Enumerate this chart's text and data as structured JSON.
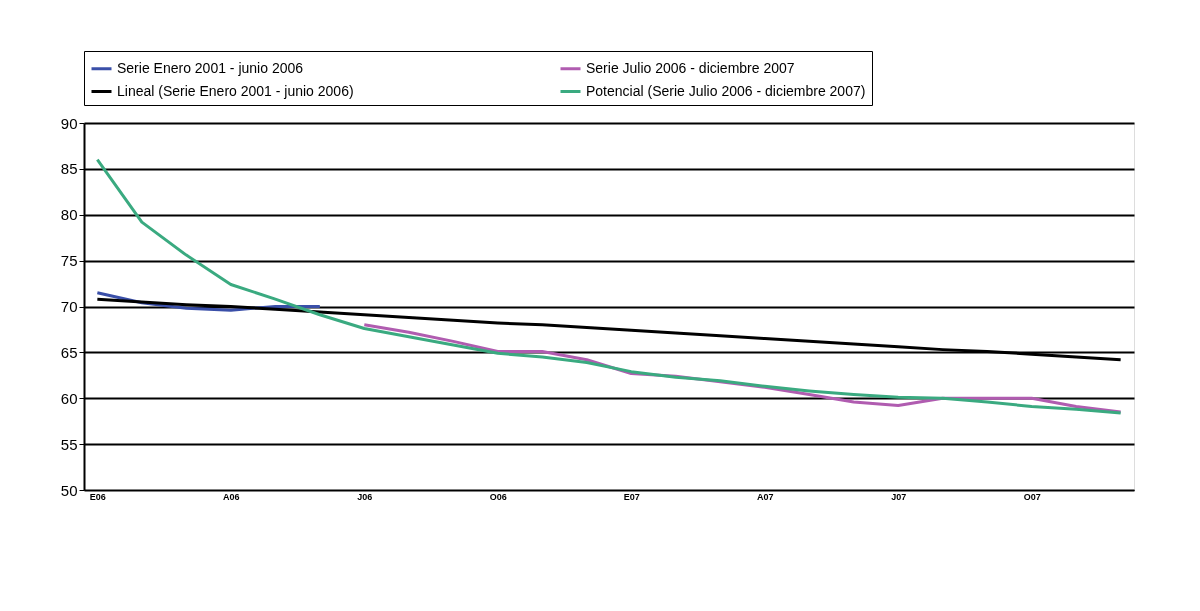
{
  "chart_data": {
    "type": "line",
    "categories": [
      "E06",
      null,
      null,
      "A06",
      null,
      null,
      "J06",
      null,
      null,
      "O06",
      null,
      null,
      "E07",
      null,
      null,
      "A07",
      null,
      null,
      "J07",
      null,
      null,
      "O07",
      null,
      null
    ],
    "series": [
      {
        "name": "Serie Enero 2001 - junio 2006",
        "color": "#3a4fa8",
        "values": [
          71.5,
          70.4,
          69.8,
          69.6,
          70.0,
          70.0,
          null,
          null,
          null,
          null,
          null,
          null,
          null,
          null,
          null,
          null,
          null,
          null,
          null,
          null,
          null,
          null,
          null,
          null
        ]
      },
      {
        "name": "Serie Julio 2006 - diciembre 2007",
        "color": "#b05cb0",
        "values": [
          null,
          null,
          null,
          null,
          null,
          null,
          68.0,
          67.2,
          66.2,
          65.1,
          65.1,
          64.2,
          62.7,
          62.4,
          61.8,
          61.2,
          60.4,
          59.6,
          59.2,
          60.0,
          60.0,
          60.0,
          59.1,
          58.5
        ]
      },
      {
        "name": "Lineal (Serie Enero 2001 - junio 2006)",
        "color": "#000000",
        "values": [
          70.8,
          70.5,
          70.2,
          70.0,
          69.7,
          69.4,
          69.1,
          68.8,
          68.5,
          68.2,
          68.0,
          67.7,
          67.4,
          67.1,
          66.8,
          66.5,
          66.2,
          65.9,
          65.6,
          65.3,
          65.1,
          64.8,
          64.5,
          64.2
        ]
      },
      {
        "name": "Potencial (Serie Julio 2006 - diciembre 2007)",
        "color": "#3aaa80",
        "values": [
          86.0,
          79.2,
          75.6,
          72.4,
          70.8,
          69.1,
          67.6,
          66.7,
          65.8,
          64.9,
          64.5,
          63.9,
          62.9,
          62.3,
          61.9,
          61.3,
          60.8,
          60.4,
          60.1,
          60.0,
          59.6,
          59.1,
          58.8,
          58.4
        ]
      }
    ],
    "ylim": [
      50,
      90
    ],
    "yticks": [
      50,
      55,
      60,
      65,
      70,
      75,
      80,
      85,
      90
    ],
    "grid": "y",
    "legend": "top",
    "line_style": "solid"
  }
}
